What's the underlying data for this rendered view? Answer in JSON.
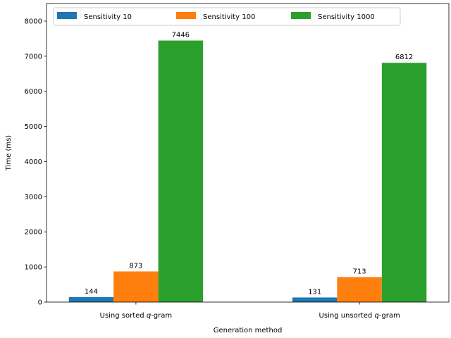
{
  "chart_data": {
    "type": "bar",
    "title": "",
    "xlabel": "Generation method",
    "ylabel": "Time (ms)",
    "ylim": [
      0,
      8500
    ],
    "yticks": [
      0,
      1000,
      2000,
      3000,
      4000,
      5000,
      6000,
      7000,
      8000
    ],
    "categories": [
      {
        "prefix": "Using sorted ",
        "italic": "q",
        "suffix": "-gram"
      },
      {
        "prefix": "Using unsorted ",
        "italic": "q",
        "suffix": "-gram"
      }
    ],
    "series": [
      {
        "name": "Sensitivity 10",
        "color": "#1f77b4",
        "values": [
          144,
          131
        ]
      },
      {
        "name": "Sensitivity 100",
        "color": "#ff7f0e",
        "values": [
          873,
          713
        ]
      },
      {
        "name": "Sensitivity 1000",
        "color": "#2ca02c",
        "values": [
          7446,
          6812
        ]
      }
    ],
    "legend": {
      "placement": "top-left",
      "columns": 3
    },
    "grid": false
  }
}
